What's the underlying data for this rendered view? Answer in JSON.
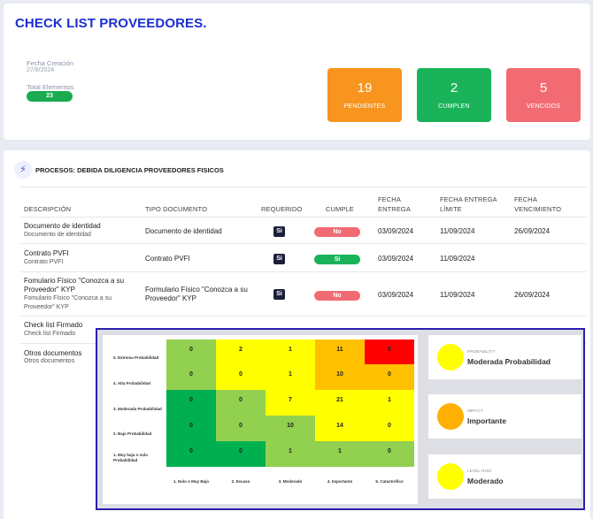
{
  "header": {
    "title": "CHECK LIST PROVEEDORES.",
    "fecha_label": "Fecha Creación",
    "fecha_value": "27/8/2024",
    "total_label": "Total Elementos",
    "total_value": "23"
  },
  "stats": [
    {
      "num": "19",
      "label": "PENDIENTES",
      "color": "#f7951f"
    },
    {
      "num": "2",
      "label": "CUMPLEN",
      "color": "#1bb35a"
    },
    {
      "num": "5",
      "label": "VENCIDOS",
      "color": "#f26b73"
    }
  ],
  "process": {
    "title": "PROCESOS: DEBIDA DILIGENCIA PROVEEDORES FISICOS"
  },
  "table": {
    "headers": {
      "descripcion": "DESCRIPCIÓN",
      "tipo": "TIPO DOCUMENTO",
      "requerido": "REQUERIDO",
      "cumple": "CUMPLE",
      "fecha_entrega_1": "FECHA",
      "fecha_entrega_2": "ENTREGA",
      "fecha_limite_1": "FECHA ENTREGA",
      "fecha_limite_2": "LÍMITE",
      "fecha_venc_1": "FECHA",
      "fecha_venc_2": "VENCIMIENTO"
    },
    "rows": [
      {
        "title": "Documento de identidad",
        "subtitle": "Documento de identidad",
        "tipo": "Documento de identidad",
        "requerido": "Si",
        "cumple": "No",
        "entrega": "03/09/2024",
        "limite": "11/09/2024",
        "vencimiento": "26/09/2024"
      },
      {
        "title": "Contrato PVFI",
        "subtitle": "Contrato PVFI",
        "tipo": "Contrato PVFI",
        "requerido": "Si",
        "cumple": "Si",
        "entrega": "03/09/2024",
        "limite": "11/09/2024",
        "vencimiento": ""
      },
      {
        "title_1": "Fomulario Físico \"Conozca a su",
        "title_2": "Proveedor\" KYP",
        "subtitle_1": "Fomulario Físico \"Conozca a su",
        "subtitle_2": "Proveedor\" KYP",
        "tipo_1": "Formulario Físico \"Conozca a su",
        "tipo_2": "Proveedor\" KYP",
        "requerido": "Si",
        "cumple": "No",
        "entrega": "03/09/2024",
        "limite": "11/09/2024",
        "vencimiento": "26/09/2024"
      },
      {
        "title": "Check list Firmado",
        "subtitle": "Check list Firmado"
      },
      {
        "title": "Otros documentos",
        "subtitle": "Otros documentos"
      }
    ]
  },
  "matrix": {
    "rows": [
      {
        "label": "5. Extrema Probabilidad",
        "values": [
          "0",
          "2",
          "1",
          "11",
          "0"
        ]
      },
      {
        "label": "4. Alta Probabilidad",
        "values": [
          "0",
          "0",
          "1",
          "10",
          "0"
        ]
      },
      {
        "label": "3. Moderada Probabilidad",
        "values": [
          "0",
          "0",
          "7",
          "21",
          "1"
        ]
      },
      {
        "label": "2. Bajo Probabilidad",
        "values": [
          "0",
          "0",
          "10",
          "14",
          "0"
        ]
      },
      {
        "label_1": "1. Muy baja o nula",
        "label_2": "Probabilidad",
        "values": [
          "0",
          "0",
          "1",
          "1",
          "0"
        ]
      }
    ],
    "columns": [
      "1. Nulo o Muy Bajo",
      "2. Escaso",
      "3. Moderado",
      "4. Importante",
      "5. Catastrófico"
    ],
    "colors": {
      "row5": [
        "#92d050",
        "#ffff00",
        "#ffff00",
        "#ffc000",
        "#ff0000"
      ],
      "row4": [
        "#92d050",
        "#ffff00",
        "#ffff00",
        "#ffc000",
        "#ffc000"
      ],
      "row3": [
        "#00b050",
        "#92d050",
        "#ffff00",
        "#ffff00",
        "#ffff00"
      ],
      "row2": [
        "#00b050",
        "#92d050",
        "#92d050",
        "#ffff00",
        "#ffff00"
      ],
      "row1": [
        "#00b050",
        "#00b050",
        "#92d050",
        "#92d050",
        "#92d050"
      ]
    }
  },
  "risk": [
    {
      "small": "PROBABILITY",
      "main": "Moderada Probabilidad",
      "color": "#ffff00"
    },
    {
      "small": "IMPACT",
      "main": "Importante",
      "color": "#ffb000"
    },
    {
      "small": "LEVEL RISK",
      "main": "Moderado",
      "color": "#ffff00"
    }
  ]
}
